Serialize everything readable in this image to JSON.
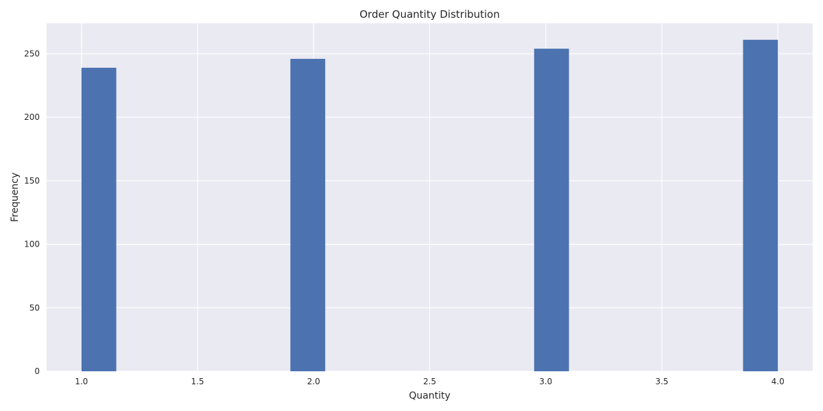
{
  "chart_data": {
    "type": "bar",
    "title": "Order Quantity Distribution",
    "xlabel": "Quantity",
    "ylabel": "Frequency",
    "bars": [
      {
        "x_start": 1.0,
        "x_end": 1.15,
        "value": 239
      },
      {
        "x_start": 1.9,
        "x_end": 2.05,
        "value": 246
      },
      {
        "x_start": 2.95,
        "x_end": 3.1,
        "value": 254
      },
      {
        "x_start": 3.85,
        "x_end": 4.0,
        "value": 261
      }
    ],
    "xlim": [
      0.85,
      4.15
    ],
    "ylim": [
      0,
      274
    ],
    "xticks": [
      1.0,
      1.5,
      2.0,
      2.5,
      3.0,
      3.5,
      4.0
    ],
    "xtick_labels": [
      "1.0",
      "1.5",
      "2.0",
      "2.5",
      "3.0",
      "3.5",
      "4.0"
    ],
    "yticks": [
      0,
      50,
      100,
      150,
      200,
      250
    ],
    "ytick_labels": [
      "0",
      "50",
      "100",
      "150",
      "200",
      "250"
    ],
    "grid": true,
    "colors": {
      "bar": "#4c72b0",
      "plot_background": "#eaeaf2",
      "grid": "#ffffff"
    }
  }
}
